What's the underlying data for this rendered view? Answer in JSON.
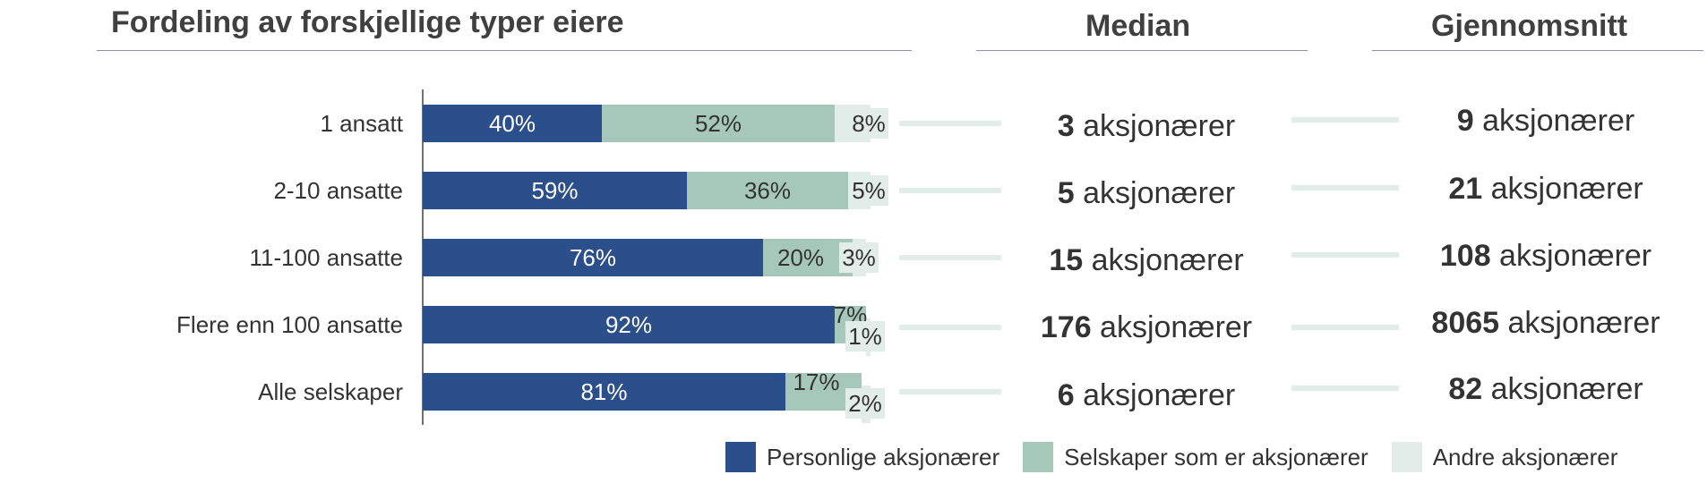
{
  "headings": {
    "distribution": "Fordeling av forskjellige typer eiere",
    "median": "Median",
    "average": "Gjennomsnitt"
  },
  "unit_label": "aksjonærer",
  "colors": {
    "personal": "#2b4f8a",
    "companies": "#a6c8bb",
    "others": "#e2ece8",
    "connector": "#e2ece8",
    "heading_rule": "#8a93ad"
  },
  "chart_data": {
    "type": "bar",
    "orientation": "horizontal",
    "stacked": true,
    "title": "Fordeling av forskjellige typer eiere",
    "categories": [
      "1 ansatt",
      "2-10 ansatte",
      "11-100 ansatte",
      "Flere enn 100 ansatte",
      "Alle selskaper"
    ],
    "series": [
      {
        "name": "Personlige aksjonærer",
        "values": [
          40,
          59,
          76,
          92,
          81
        ],
        "labels": [
          "40%",
          "59%",
          "76%",
          "92%",
          "81%"
        ]
      },
      {
        "name": "Selskaper som er aksjonærer",
        "values": [
          52,
          36,
          20,
          7,
          17
        ],
        "labels": [
          "52%",
          "36%",
          "20%",
          "7%",
          "17%"
        ]
      },
      {
        "name": "Andre aksjonærer",
        "values": [
          8,
          5,
          3,
          1,
          2
        ],
        "labels": [
          "8%",
          "5%",
          "3%",
          "1%",
          "2%"
        ]
      }
    ],
    "xlim": [
      0,
      100
    ],
    "legend_position": "bottom-right",
    "grid": false
  },
  "medians": [
    {
      "value": "3"
    },
    {
      "value": "5"
    },
    {
      "value": "15"
    },
    {
      "value": "176"
    },
    {
      "value": "6"
    }
  ],
  "averages": [
    {
      "value": "9"
    },
    {
      "value": "21"
    },
    {
      "value": "108"
    },
    {
      "value": "8065"
    },
    {
      "value": "82"
    }
  ]
}
